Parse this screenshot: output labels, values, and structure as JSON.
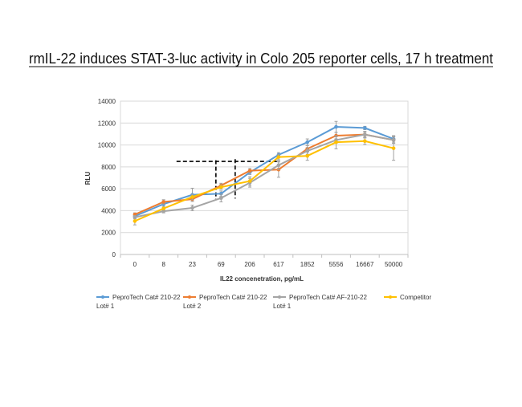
{
  "chart_data": {
    "type": "line",
    "title": "rmIL-22 induces STAT-3-luc activity in Colo 205 reporter cells, 17 h treatment",
    "xlabel": "IL22 concenetration, pg/mL",
    "ylabel": "RLU",
    "ylim": [
      0,
      14000
    ],
    "yticks": [
      "0",
      "2000",
      "4000",
      "6000",
      "8000",
      "10000",
      "12000",
      "14000"
    ],
    "categories": [
      "0",
      "8",
      "23",
      "69",
      "206",
      "617",
      "1852",
      "5556",
      "16667",
      "50000"
    ],
    "grid": true,
    "legend_position": "bottom",
    "series": [
      {
        "name": "PeproTech Cat# 210-22 Lot# 1",
        "name_lines": [
          "PeproTech Cat# 210-22",
          "Lot# 1"
        ],
        "color": "#5b9bd5",
        "values": [
          3500,
          4600,
          5450,
          5550,
          7500,
          9100,
          10250,
          11650,
          11550,
          10550
        ],
        "errors": [
          150,
          300,
          600,
          250,
          200,
          200,
          300,
          500,
          150,
          300
        ]
      },
      {
        "name": "PeproTech Cat# 210-22 Lot# 2",
        "name_lines": [
          "PeproTech Cat# 210-22",
          "Lot# 2"
        ],
        "color": "#ed7d31",
        "values": [
          3650,
          4800,
          5050,
          6300,
          7650,
          7750,
          9650,
          10850,
          10950,
          10450
        ],
        "errors": [
          150,
          200,
          200,
          200,
          200,
          700,
          300,
          300,
          200,
          300
        ]
      },
      {
        "name": "PeproTech Cat# AF-210-22 Lot# 1",
        "name_lines": [
          "PeproTech Cat# AF-210-22",
          "Lot# 1"
        ],
        "color": "#a5a5a5",
        "values": [
          3400,
          3950,
          4250,
          5150,
          6550,
          8150,
          9450,
          10450,
          10950,
          10450
        ],
        "errors": [
          150,
          150,
          250,
          350,
          400,
          400,
          300,
          300,
          300,
          300
        ]
      },
      {
        "name": "Competitor",
        "name_lines": [
          "Competitor"
        ],
        "color": "#ffc000",
        "values": [
          3050,
          4200,
          5250,
          6150,
          6700,
          8900,
          9000,
          10250,
          10350,
          9700
        ],
        "errors": [
          350,
          200,
          250,
          200,
          400,
          250,
          400,
          600,
          300,
          1100
        ]
      }
    ],
    "annotations": [
      {
        "type": "dashed-horizontal",
        "y": 8500,
        "x_from_category_index": 1.45,
        "x_to_category_index": 5
      },
      {
        "type": "dashed-vertical",
        "x_category_index": 2.82,
        "y_from": 8600,
        "y_to": 5000
      },
      {
        "type": "dashed-vertical",
        "x_category_index": 3.49,
        "y_from": 8700,
        "y_to": 5100
      }
    ]
  }
}
